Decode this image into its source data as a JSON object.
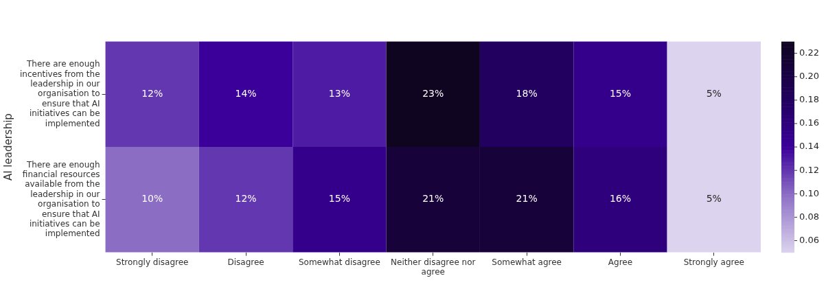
{
  "chart_data": {
    "type": "heatmap",
    "ylabel": "AI leadership",
    "categories": [
      "Strongly disagree",
      "Disagree",
      "Somewhat disagree",
      "Neither disagree nor agree",
      "Somewhat agree",
      "Agree",
      "Strongly agree"
    ],
    "y_categories": [
      "There are enough incentives from the leadership in our organisation to ensure that AI initiatives can be implemented",
      "There are enough financial resources available from the leadership in our organisation to ensure that AI initiatives can be implemented"
    ],
    "cells": [
      [
        0.12,
        0.14,
        0.13,
        0.23,
        0.18,
        0.15,
        0.05
      ],
      [
        0.1,
        0.12,
        0.15,
        0.21,
        0.21,
        0.16,
        0.05
      ]
    ],
    "cell_labels": [
      [
        "12%",
        "14%",
        "13%",
        "23%",
        "18%",
        "15%",
        "5%"
      ],
      [
        "10%",
        "12%",
        "15%",
        "21%",
        "21%",
        "16%",
        "5%"
      ]
    ],
    "clim": [
      0.05,
      0.23
    ],
    "cticks": [
      0.06,
      0.08,
      {
        "value": 0.1,
        "label": "0.10"
      },
      0.12,
      0.14,
      0.16,
      0.18,
      {
        "value": 0.2,
        "label": "0.20"
      },
      0.22
    ]
  }
}
